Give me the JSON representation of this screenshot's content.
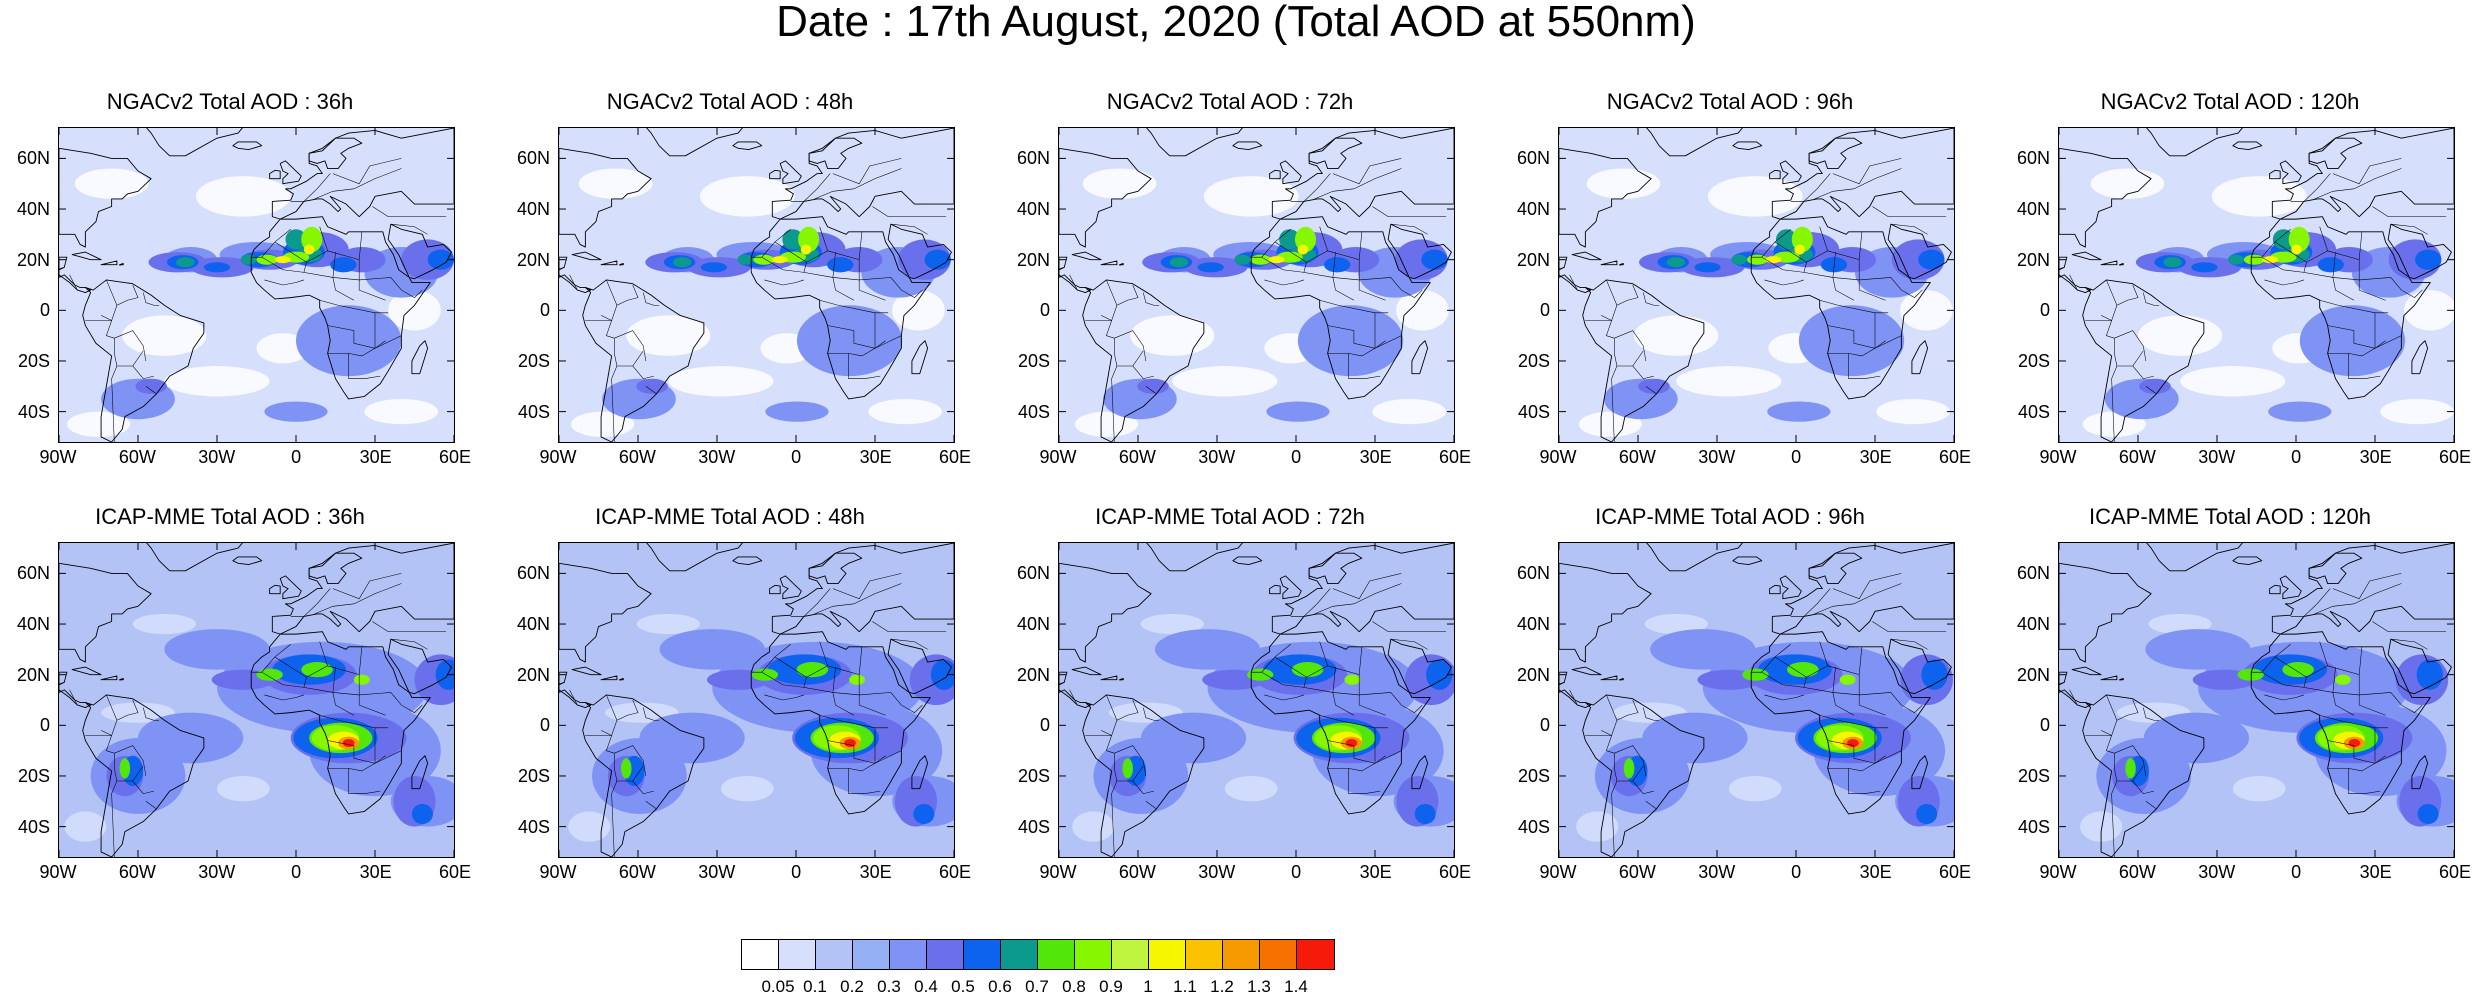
{
  "title": "Date : 17th August, 2020 (Total AOD at 550nm)",
  "panels": [
    {
      "title": "NGACv2 Total AOD : 36h",
      "model": "ngac"
    },
    {
      "title": "NGACv2 Total AOD : 48h",
      "model": "ngac"
    },
    {
      "title": "NGACv2 Total AOD : 72h",
      "model": "ngac"
    },
    {
      "title": "NGACv2 Total AOD : 96h",
      "model": "ngac"
    },
    {
      "title": "NGACv2 Total AOD : 120h",
      "model": "ngac"
    },
    {
      "title": "ICAP-MME Total AOD : 36h",
      "model": "icap"
    },
    {
      "title": "ICAP-MME Total AOD : 48h",
      "model": "icap"
    },
    {
      "title": "ICAP-MME Total AOD : 72h",
      "model": "icap"
    },
    {
      "title": "ICAP-MME Total AOD : 96h",
      "model": "icap"
    },
    {
      "title": "ICAP-MME Total AOD : 120h",
      "model": "icap"
    }
  ],
  "axes": {
    "lat_labels": [
      "60N",
      "40N",
      "20N",
      "0",
      "20S",
      "40S"
    ],
    "lat_values": [
      60,
      40,
      20,
      0,
      -20,
      -40
    ],
    "lon_labels": [
      "90W",
      "60W",
      "30W",
      "0",
      "30E",
      "60E"
    ],
    "lon_values": [
      -90,
      -60,
      -30,
      0,
      30,
      60
    ],
    "lat_range": [
      -52,
      72
    ],
    "lon_range": [
      -90,
      60
    ]
  },
  "colorbar": {
    "colors": [
      "#ffffff",
      "#d6dffb",
      "#b4c3f5",
      "#96b0f5",
      "#7f93f5",
      "#6a70ec",
      "#0e63ee",
      "#0b9a8d",
      "#52e60b",
      "#86f700",
      "#bff53f",
      "#f6f600",
      "#fbc200",
      "#f79a00",
      "#f77100",
      "#f51a0a"
    ],
    "labels": [
      "0.05",
      "0.1",
      "0.2",
      "0.3",
      "0.4",
      "0.5",
      "0.6",
      "0.7",
      "0.8",
      "0.9",
      "1",
      "1.1",
      "1.2",
      "1.3",
      "1.4"
    ]
  }
}
